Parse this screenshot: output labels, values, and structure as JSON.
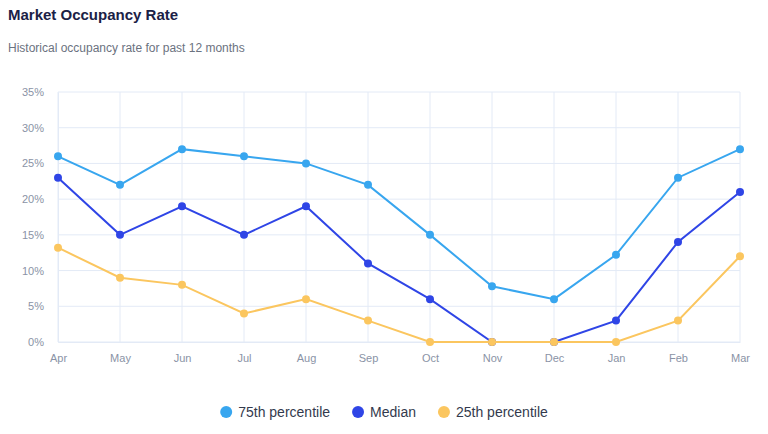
{
  "chart_data": {
    "type": "line",
    "title": "Market Occupancy Rate",
    "subtitle": "Historical occupancy rate for past 12 months",
    "categories": [
      "Apr",
      "May",
      "Jun",
      "Jul",
      "Aug",
      "Sep",
      "Oct",
      "Nov",
      "Dec",
      "Jan",
      "Feb",
      "Mar"
    ],
    "series": [
      {
        "name": "75th percentile",
        "color": "#38a6ef",
        "marker": "circle",
        "values": [
          26,
          22,
          27,
          26,
          25,
          22,
          15,
          7.8,
          6,
          12.2,
          23,
          27
        ]
      },
      {
        "name": "Median",
        "color": "#2f45e6",
        "marker": "circle",
        "values": [
          23,
          15,
          19,
          15,
          19,
          11,
          6,
          0,
          0,
          3,
          14,
          21
        ]
      },
      {
        "name": "25th percentile",
        "color": "#fbc65f",
        "marker": "circle",
        "values": [
          13.2,
          9,
          8,
          4,
          6,
          3,
          0,
          0,
          0,
          0,
          3,
          12
        ]
      }
    ],
    "ylim": [
      0,
      35
    ],
    "yticks": [
      {
        "value": 0,
        "label": "0%"
      },
      {
        "value": 5,
        "label": "5%"
      },
      {
        "value": 10,
        "label": "10%"
      },
      {
        "value": 15,
        "label": "15%"
      },
      {
        "value": 20,
        "label": "20%"
      },
      {
        "value": 25,
        "label": "25%"
      },
      {
        "value": 30,
        "label": "30%"
      },
      {
        "value": 35,
        "label": "35%"
      }
    ],
    "grid": true,
    "legend": "bottom"
  }
}
